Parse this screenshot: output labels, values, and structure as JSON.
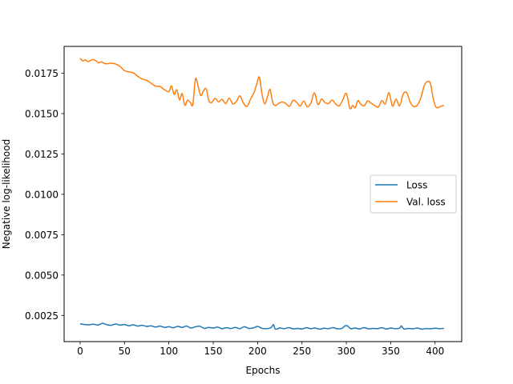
{
  "chart_data": {
    "type": "line",
    "title": "",
    "xlabel": "Epochs",
    "ylabel": "Negative log-likelihood",
    "xlim": [
      -18,
      430
    ],
    "ylim": [
      0.00088,
      0.01916
    ],
    "x_ticks": [
      0,
      50,
      100,
      150,
      200,
      250,
      300,
      350,
      400
    ],
    "y_ticks": [
      0.0025,
      0.005,
      0.0075,
      0.01,
      0.0125,
      0.015,
      0.0175
    ],
    "y_tick_labels": [
      "0.0025",
      "0.0050",
      "0.0075",
      "0.0100",
      "0.0125",
      "0.0150",
      "0.0175"
    ],
    "grid": false,
    "legend_position": "center-right",
    "series": [
      {
        "name": "Loss",
        "color": "#1f77b4",
        "x": [
          0,
          5,
          10,
          15,
          20,
          25,
          30,
          35,
          40,
          45,
          50,
          55,
          60,
          65,
          70,
          75,
          80,
          85,
          90,
          95,
          100,
          105,
          110,
          115,
          120,
          125,
          130,
          135,
          140,
          145,
          150,
          155,
          160,
          165,
          170,
          175,
          180,
          185,
          190,
          195,
          200,
          205,
          210,
          215,
          218,
          220,
          225,
          230,
          235,
          240,
          245,
          250,
          255,
          260,
          265,
          270,
          275,
          280,
          285,
          290,
          295,
          300,
          305,
          310,
          315,
          320,
          325,
          330,
          335,
          340,
          345,
          350,
          355,
          360,
          362,
          365,
          370,
          375,
          380,
          385,
          390,
          395,
          400,
          405,
          410
        ],
        "y": [
          0.00198,
          0.00194,
          0.00192,
          0.00196,
          0.0019,
          0.00201,
          0.00193,
          0.00189,
          0.00197,
          0.0019,
          0.00194,
          0.00186,
          0.00192,
          0.00184,
          0.00189,
          0.00182,
          0.00186,
          0.00178,
          0.00184,
          0.00176,
          0.0018,
          0.00174,
          0.00182,
          0.00176,
          0.00184,
          0.00172,
          0.0018,
          0.00183,
          0.0017,
          0.00176,
          0.00172,
          0.00178,
          0.00168,
          0.00174,
          0.00169,
          0.00176,
          0.00168,
          0.0018,
          0.0017,
          0.00172,
          0.00182,
          0.0017,
          0.00168,
          0.00174,
          0.00193,
          0.00165,
          0.00172,
          0.00168,
          0.00175,
          0.00167,
          0.0017,
          0.00166,
          0.00174,
          0.00168,
          0.00172,
          0.00165,
          0.00171,
          0.00168,
          0.00175,
          0.00167,
          0.0017,
          0.00188,
          0.00168,
          0.00172,
          0.00166,
          0.00175,
          0.00167,
          0.0017,
          0.00168,
          0.00174,
          0.00166,
          0.00172,
          0.00168,
          0.00171,
          0.00185,
          0.00166,
          0.0017,
          0.00167,
          0.00172,
          0.00165,
          0.00169,
          0.00167,
          0.00171,
          0.00168,
          0.0017
        ]
      },
      {
        "name": "Val. loss",
        "color": "#ff7f0e",
        "x": [
          0,
          3,
          6,
          9,
          12,
          15,
          18,
          21,
          24,
          27,
          30,
          35,
          40,
          45,
          50,
          55,
          60,
          65,
          70,
          75,
          80,
          85,
          90,
          95,
          100,
          103,
          106,
          109,
          112,
          115,
          118,
          121,
          124,
          127,
          130,
          133,
          136,
          139,
          142,
          145,
          148,
          152,
          156,
          160,
          164,
          168,
          172,
          176,
          180,
          184,
          188,
          192,
          196,
          199,
          202,
          205,
          208,
          211,
          214,
          217,
          220,
          224,
          228,
          232,
          236,
          240,
          244,
          248,
          252,
          256,
          260,
          264,
          268,
          272,
          276,
          280,
          284,
          288,
          292,
          296,
          300,
          304,
          307,
          310,
          313,
          316,
          320,
          324,
          328,
          332,
          336,
          340,
          344,
          348,
          352,
          356,
          360,
          364,
          368,
          372,
          376,
          380,
          384,
          388,
          392,
          395,
          398,
          401,
          404,
          407,
          410
        ],
        "y": [
          0.01843,
          0.01826,
          0.01833,
          0.01822,
          0.0183,
          0.01834,
          0.01826,
          0.01814,
          0.0182,
          0.01812,
          0.01808,
          0.01812,
          0.01807,
          0.01792,
          0.01766,
          0.01758,
          0.01752,
          0.01731,
          0.01714,
          0.01706,
          0.01688,
          0.0167,
          0.01668,
          0.01648,
          0.01636,
          0.01672,
          0.01618,
          0.01648,
          0.01585,
          0.01624,
          0.01551,
          0.01584,
          0.0157,
          0.01556,
          0.01715,
          0.01668,
          0.01612,
          0.01641,
          0.01654,
          0.01582,
          0.01567,
          0.01594,
          0.01572,
          0.01588,
          0.01562,
          0.01596,
          0.0156,
          0.01574,
          0.0161,
          0.01566,
          0.01544,
          0.01588,
          0.01631,
          0.01682,
          0.01726,
          0.0162,
          0.0156,
          0.01602,
          0.0165,
          0.0157,
          0.0155,
          0.01564,
          0.01572,
          0.01561,
          0.01545,
          0.01582,
          0.0157,
          0.01546,
          0.01578,
          0.01542,
          0.01564,
          0.01628,
          0.01556,
          0.0159,
          0.01568,
          0.01562,
          0.01584,
          0.0156,
          0.01548,
          0.01586,
          0.01624,
          0.01532,
          0.0155,
          0.01536,
          0.0158,
          0.0156,
          0.01548,
          0.01578,
          0.01564,
          0.0155,
          0.0154,
          0.0158,
          0.0156,
          0.0163,
          0.01546,
          0.0159,
          0.01548,
          0.0162,
          0.0163,
          0.0157,
          0.01544,
          0.01552,
          0.01598,
          0.01676,
          0.017,
          0.01682,
          0.0159,
          0.0154,
          0.01538,
          0.01546,
          0.01552
        ]
      }
    ]
  }
}
